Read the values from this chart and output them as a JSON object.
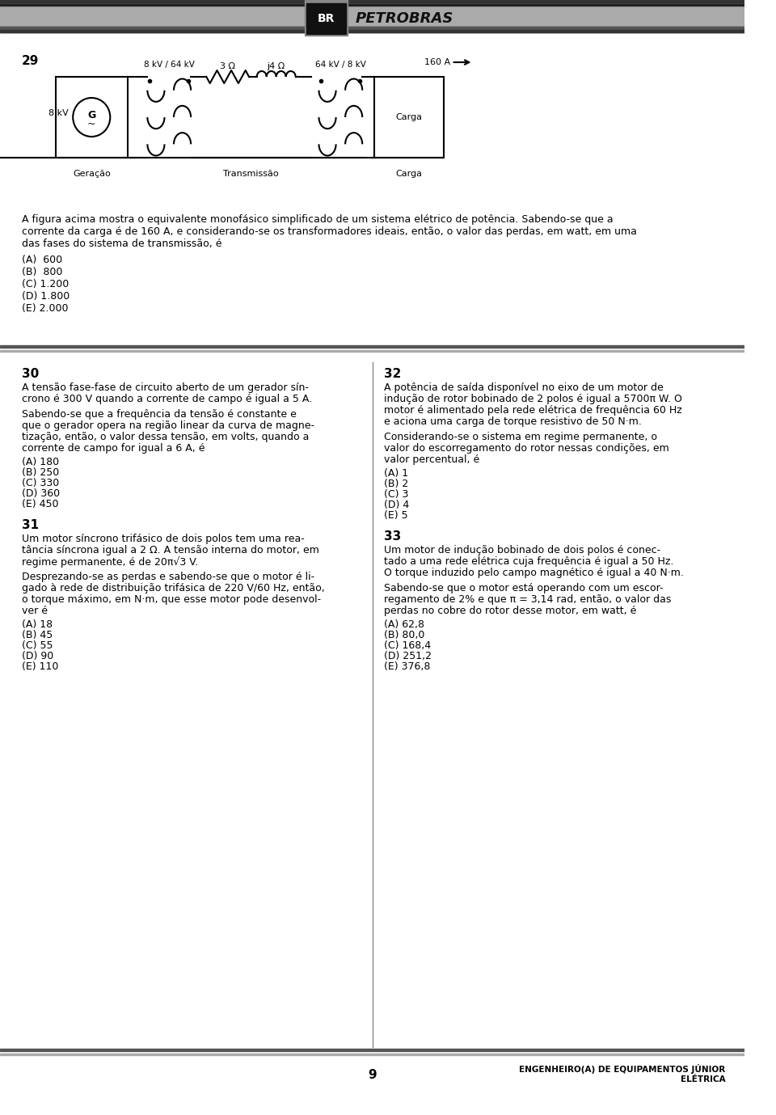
{
  "page_number": "29",
  "bg_color": "#ffffff",
  "q29_number": "29",
  "q29_options": [
    "(A)  600",
    "(B)  800",
    "(C) 1.200",
    "(D) 1.800",
    "(E) 2.000"
  ],
  "circuit_label_geracao": "Geração",
  "circuit_label_transmissao": "Transmissão",
  "circuit_label_carga": "Carga",
  "circuit_8kv": "8 kV",
  "circuit_tx1": "8 kV / 64 kV",
  "circuit_3ohm": "3 Ω",
  "circuit_j4ohm": "j4 Ω",
  "circuit_tx2": "64 kV / 8 kV",
  "circuit_160a": "160 A",
  "circuit_carga_box": "Carga",
  "q29_text_lines": [
    "A figura acima mostra o equivalente monofásico simplificado de um sistema elétrico de potência. Sabendo-se que a",
    "corrente da carga é de 160 A, e considerando-se os transformadores ideais, então, o valor das perdas, em watt, em uma",
    "das fases do sistema de transmissão, é"
  ],
  "q30_number": "30",
  "q30_lines": [
    "A tensão fase-fase de circuito aberto de um gerador sín-",
    "crono é 300 V quando a corrente de campo é igual a 5 A.",
    "",
    "Sabendo-se que a frequência da tensão é constante e",
    "que o gerador opera na região linear da curva de magne-",
    "tização, então, o valor dessa tensão, em volts, quando a",
    "corrente de campo for igual a 6 A, é"
  ],
  "q30_options": [
    "(A) 180",
    "(B) 250",
    "(C) 330",
    "(D) 360",
    "(E) 450"
  ],
  "q31_number": "31",
  "q31_lines": [
    "Um motor síncrono trifásico de dois polos tem uma rea-",
    "tância síncrona igual a 2 Ω. A tensão interna do motor, em",
    "regime permanente, é de 20π√3 V.",
    "",
    "Desprezando-se as perdas e sabendo-se que o motor é li-",
    "gado à rede de distribuição trifásica de 220 V/60 Hz, então,",
    "o torque máximo, em N·m, que esse motor pode desenvol-",
    "ver é"
  ],
  "q31_options": [
    "(A) 18",
    "(B) 45",
    "(C) 55",
    "(D) 90",
    "(E) 110"
  ],
  "q32_number": "32",
  "q32_lines": [
    "A potência de saída disponível no eixo de um motor de",
    "indução de rotor bobinado de 2 polos é igual a 5700π W. O",
    "motor é alimentado pela rede elétrica de frequência 60 Hz",
    "e aciona uma carga de torque resistivo de 50 N·m.",
    "",
    "Considerando-se o sistema em regime permanente, o",
    "valor do escorregamento do rotor nessas condições, em",
    "valor percentual, é"
  ],
  "q32_options": [
    "(A) 1",
    "(B) 2",
    "(C) 3",
    "(D) 4",
    "(E) 5"
  ],
  "q33_number": "33",
  "q33_lines": [
    "Um motor de indução bobinado de dois polos é conec-",
    "tado a uma rede elétrica cuja frequência é igual a 50 Hz.",
    "O torque induzido pelo campo magnético é igual a 40 N·m.",
    "",
    "Sabendo-se que o motor está operando com um escor-",
    "regamento de 2% e que π = 3,14 rad, então, o valor das",
    "perdas no cobre do rotor desse motor, em watt, é"
  ],
  "q33_options": [
    "(A) 62,8",
    "(B) 80,0",
    "(C) 168,4",
    "(D) 251,2",
    "(E) 376,8"
  ],
  "footer_page": "9",
  "footer_right1": "ENGENHEIRO(A) DE EQUIPAMENTOS JÚNIOR",
  "footer_right2": "ELÉTRICA"
}
